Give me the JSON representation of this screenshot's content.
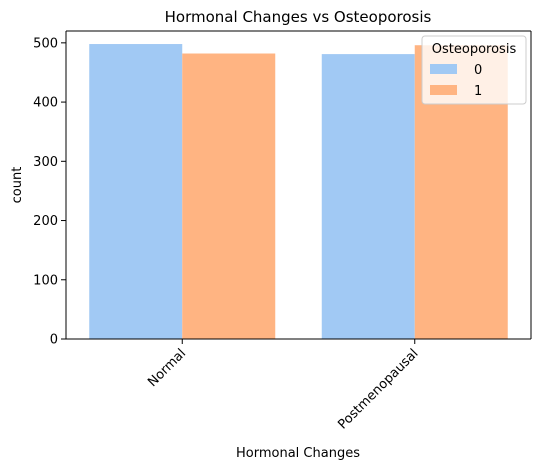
{
  "chart_data": {
    "type": "bar",
    "title": "Hormonal Changes vs Osteoporosis",
    "xlabel": "Hormonal Changes",
    "ylabel": "count",
    "categories": [
      "Normal",
      "Postmenopausal"
    ],
    "series": [
      {
        "name": "0",
        "values": [
          498,
          481
        ]
      },
      {
        "name": "1",
        "values": [
          482,
          496
        ]
      }
    ],
    "ylim": [
      0,
      520
    ],
    "yticks": [
      0,
      100,
      200,
      300,
      400,
      500
    ],
    "grid": false,
    "legend": {
      "title": "Osteoporosis",
      "placement": "top-right"
    },
    "colors": [
      "#a1c9f4",
      "#ffb482"
    ]
  }
}
